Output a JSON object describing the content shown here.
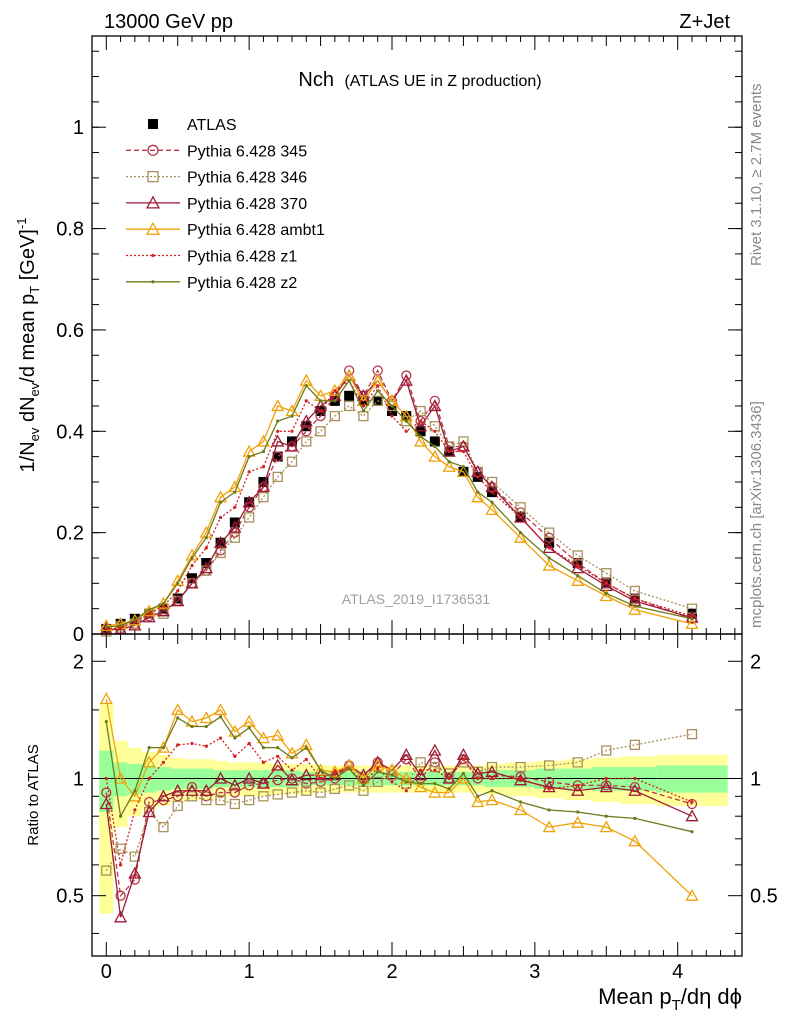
{
  "header": {
    "left": "13000 GeV pp",
    "right": "Z+Jet"
  },
  "side_labels": {
    "rivet": "Rivet 3.1.10, ≥ 2.7M events",
    "mcplots": "mcplots.cern.ch [arXiv:1306.3436]"
  },
  "main_title": "Nch",
  "main_subtitle": "(ATLAS UE in Z production)",
  "analysis_id": "ATLAS_2019_I1736531",
  "axes": {
    "ylabel_main": "1/N_ev dN_ev/d mean p_T [GeV]^-1",
    "ylabel_ratio": "Ratio to ATLAS",
    "xlabel": "Mean p_T/dη dϕ"
  },
  "legend": [
    {
      "label": "ATLAS",
      "color": "#000000",
      "marker": "square-filled"
    },
    {
      "label": "Pythia 6.428 345",
      "color": "#b5384a",
      "marker": "circle-open",
      "dash": "dashed"
    },
    {
      "label": "Pythia 6.428 346",
      "color": "#a8915c",
      "marker": "square-open",
      "dash": "dotted"
    },
    {
      "label": "Pythia 6.428 370",
      "color": "#9c1a36",
      "marker": "triangle-open",
      "dash": "solid"
    },
    {
      "label": "Pythia 6.428 ambt1",
      "color": "#f0a20b",
      "marker": "triangle-open",
      "dash": "solid"
    },
    {
      "label": "Pythia 6.428 z1",
      "color": "#d62020",
      "marker": "dot",
      "dash": "dotted"
    },
    {
      "label": "Pythia 6.428 z2",
      "color": "#6e7a1a",
      "marker": "dot",
      "dash": "solid"
    }
  ],
  "chart_data": {
    "type": "line",
    "xlim": [
      -0.1,
      4.45
    ],
    "ylim_main": [
      0,
      1.18
    ],
    "ylim_ratio": [
      0.35,
      2.35
    ],
    "ratio_log_scale": true,
    "x_ticks": [
      0,
      1,
      2,
      3,
      4
    ],
    "y_ticks_main": [
      0,
      0.2,
      0.4,
      0.6,
      0.8,
      1
    ],
    "y_ticks_ratio": [
      0.5,
      1,
      2
    ],
    "x": [
      0,
      0.1,
      0.2,
      0.3,
      0.4,
      0.5,
      0.6,
      0.7,
      0.8,
      0.9,
      1.0,
      1.1,
      1.2,
      1.3,
      1.4,
      1.5,
      1.6,
      1.7,
      1.8,
      1.9,
      2.0,
      2.1,
      2.2,
      2.3,
      2.4,
      2.5,
      2.6,
      2.7,
      2.9,
      3.1,
      3.3,
      3.5,
      3.7,
      4.1
    ],
    "series": [
      {
        "name": "ATLAS",
        "values": [
          0.01,
          0.02,
          0.03,
          0.04,
          0.05,
          0.07,
          0.11,
          0.14,
          0.18,
          0.22,
          0.26,
          0.3,
          0.35,
          0.38,
          0.41,
          0.44,
          0.46,
          0.47,
          0.46,
          0.46,
          0.44,
          0.43,
          0.4,
          0.38,
          0.36,
          0.32,
          0.31,
          0.28,
          0.23,
          0.18,
          0.14,
          0.1,
          0.07,
          0.04
        ]
      },
      {
        "name": "Pythia 6.428 345",
        "values": [
          0.01,
          0.01,
          0.02,
          0.035,
          0.045,
          0.065,
          0.1,
          0.125,
          0.165,
          0.2,
          0.25,
          0.29,
          0.35,
          0.37,
          0.4,
          0.43,
          0.47,
          0.52,
          0.47,
          0.52,
          0.46,
          0.51,
          0.42,
          0.46,
          0.37,
          0.37,
          0.32,
          0.29,
          0.24,
          0.19,
          0.14,
          0.1,
          0.07,
          0.03
        ]
      },
      {
        "name": "Pythia 6.428 346",
        "values": [
          0.005,
          0.015,
          0.02,
          0.04,
          0.04,
          0.065,
          0.1,
          0.125,
          0.16,
          0.19,
          0.23,
          0.27,
          0.31,
          0.34,
          0.38,
          0.4,
          0.43,
          0.45,
          0.43,
          0.46,
          0.45,
          0.42,
          0.44,
          0.41,
          0.37,
          0.38,
          0.32,
          0.3,
          0.25,
          0.2,
          0.155,
          0.12,
          0.085,
          0.05
        ]
      },
      {
        "name": "Pythia 6.428 370",
        "values": [
          0.009,
          0.009,
          0.017,
          0.033,
          0.045,
          0.065,
          0.1,
          0.13,
          0.18,
          0.21,
          0.26,
          0.29,
          0.38,
          0.37,
          0.42,
          0.45,
          0.47,
          0.51,
          0.47,
          0.5,
          0.46,
          0.5,
          0.41,
          0.45,
          0.36,
          0.37,
          0.32,
          0.29,
          0.23,
          0.17,
          0.13,
          0.095,
          0.065,
          0.032
        ]
      },
      {
        "name": "Pythia 6.428 ambt1",
        "values": [
          0.016,
          0.02,
          0.027,
          0.045,
          0.06,
          0.105,
          0.155,
          0.2,
          0.27,
          0.29,
          0.36,
          0.38,
          0.45,
          0.44,
          0.5,
          0.47,
          0.48,
          0.51,
          0.46,
          0.5,
          0.46,
          0.43,
          0.38,
          0.35,
          0.33,
          0.32,
          0.27,
          0.245,
          0.19,
          0.135,
          0.105,
          0.075,
          0.048,
          0.02
        ]
      },
      {
        "name": "Pythia 6.428 z1",
        "values": [
          0.01,
          0.012,
          0.025,
          0.04,
          0.055,
          0.085,
          0.135,
          0.17,
          0.23,
          0.25,
          0.32,
          0.33,
          0.4,
          0.4,
          0.46,
          0.44,
          0.48,
          0.5,
          0.45,
          0.49,
          0.43,
          0.4,
          0.42,
          0.4,
          0.36,
          0.36,
          0.31,
          0.28,
          0.23,
          0.17,
          0.135,
          0.1,
          0.07,
          0.035
        ]
      },
      {
        "name": "Pythia 6.428 z2",
        "values": [
          0.014,
          0.016,
          0.028,
          0.048,
          0.06,
          0.1,
          0.15,
          0.19,
          0.26,
          0.28,
          0.35,
          0.36,
          0.42,
          0.43,
          0.49,
          0.46,
          0.46,
          0.5,
          0.44,
          0.48,
          0.45,
          0.42,
          0.39,
          0.37,
          0.34,
          0.33,
          0.28,
          0.26,
          0.2,
          0.15,
          0.115,
          0.08,
          0.055,
          0.03
        ]
      }
    ],
    "ratio_series": [
      {
        "name": "Pythia 6.428 345",
        "values": [
          0.92,
          0.5,
          0.55,
          0.87,
          0.88,
          0.9,
          0.95,
          0.9,
          0.92,
          0.92,
          0.96,
          0.97,
          0.99,
          1.0,
          0.97,
          0.98,
          1.0,
          1.08,
          1.0,
          1.1,
          1.02,
          1.12,
          1.0,
          1.1,
          1.0,
          1.12,
          1.0,
          1.02,
          1.01,
          0.98,
          0.96,
          0.96,
          0.95,
          0.86
        ]
      },
      {
        "name": "Pythia 6.428 346",
        "values": [
          0.58,
          0.66,
          0.63,
          0.82,
          0.75,
          0.85,
          0.9,
          0.88,
          0.88,
          0.86,
          0.88,
          0.9,
          0.91,
          0.92,
          0.93,
          0.92,
          0.94,
          0.96,
          0.93,
          0.98,
          1.02,
          0.97,
          1.1,
          1.07,
          1.03,
          1.1,
          1.04,
          1.07,
          1.07,
          1.08,
          1.1,
          1.18,
          1.22,
          1.3
        ]
      },
      {
        "name": "Pythia 6.428 370",
        "values": [
          0.86,
          0.44,
          0.57,
          0.82,
          0.9,
          0.93,
          0.93,
          0.93,
          1.0,
          0.96,
          1.0,
          0.97,
          1.08,
          0.99,
          1.02,
          1.02,
          1.02,
          1.08,
          1.02,
          1.1,
          1.05,
          1.15,
          1.02,
          1.18,
          1.0,
          1.15,
          1.03,
          1.04,
          0.99,
          0.95,
          0.93,
          0.95,
          0.93,
          0.8
        ]
      },
      {
        "name": "Pythia 6.428 ambt1",
        "values": [
          1.6,
          1.0,
          0.9,
          1.1,
          1.2,
          1.5,
          1.4,
          1.43,
          1.5,
          1.32,
          1.4,
          1.27,
          1.29,
          1.16,
          1.22,
          1.05,
          1.04,
          1.08,
          1.0,
          1.08,
          1.05,
          1.0,
          0.95,
          0.92,
          0.92,
          1.0,
          0.87,
          0.88,
          0.83,
          0.75,
          0.77,
          0.75,
          0.69,
          0.5
        ]
      },
      {
        "name": "Pythia 6.428 z1",
        "values": [
          1.0,
          0.6,
          0.83,
          1.0,
          1.1,
          1.22,
          1.23,
          1.21,
          1.27,
          1.14,
          1.23,
          1.1,
          1.14,
          1.05,
          1.12,
          1.0,
          1.04,
          1.06,
          0.98,
          1.06,
          0.98,
          0.93,
          1.05,
          1.05,
          1.0,
          1.12,
          1.0,
          1.0,
          1.0,
          0.94,
          0.96,
          1.0,
          1.0,
          0.87
        ]
      },
      {
        "name": "Pythia 6.428 z2",
        "values": [
          1.4,
          0.8,
          0.93,
          1.2,
          1.2,
          1.43,
          1.36,
          1.36,
          1.44,
          1.27,
          1.35,
          1.2,
          1.2,
          1.13,
          1.2,
          1.05,
          1.0,
          1.06,
          0.96,
          1.04,
          1.02,
          0.98,
          0.97,
          0.97,
          0.94,
          1.03,
          0.9,
          0.93,
          0.87,
          0.83,
          0.82,
          0.8,
          0.79,
          0.73
        ]
      }
    ],
    "ratio_bands": {
      "xedges": [
        -0.05,
        0.05,
        0.15,
        0.25,
        0.35,
        0.45,
        0.55,
        0.65,
        0.75,
        0.85,
        0.95,
        1.05,
        1.15,
        1.25,
        1.35,
        1.45,
        1.55,
        1.65,
        1.75,
        1.85,
        1.95,
        2.05,
        2.15,
        2.25,
        2.35,
        2.45,
        2.55,
        2.65,
        2.8,
        3.0,
        3.2,
        3.4,
        3.6,
        3.85,
        4.35
      ],
      "green_half": [
        0.18,
        0.1,
        0.09,
        0.08,
        0.07,
        0.06,
        0.06,
        0.06,
        0.05,
        0.05,
        0.05,
        0.05,
        0.05,
        0.05,
        0.04,
        0.04,
        0.04,
        0.04,
        0.04,
        0.04,
        0.04,
        0.04,
        0.04,
        0.04,
        0.04,
        0.04,
        0.04,
        0.05,
        0.05,
        0.06,
        0.06,
        0.07,
        0.07,
        0.08
      ],
      "yellow_half": [
        0.55,
        0.25,
        0.2,
        0.17,
        0.15,
        0.13,
        0.12,
        0.12,
        0.11,
        0.1,
        0.1,
        0.1,
        0.09,
        0.09,
        0.09,
        0.08,
        0.08,
        0.08,
        0.08,
        0.08,
        0.08,
        0.08,
        0.08,
        0.08,
        0.08,
        0.08,
        0.08,
        0.09,
        0.1,
        0.11,
        0.12,
        0.13,
        0.14,
        0.15
      ]
    }
  }
}
